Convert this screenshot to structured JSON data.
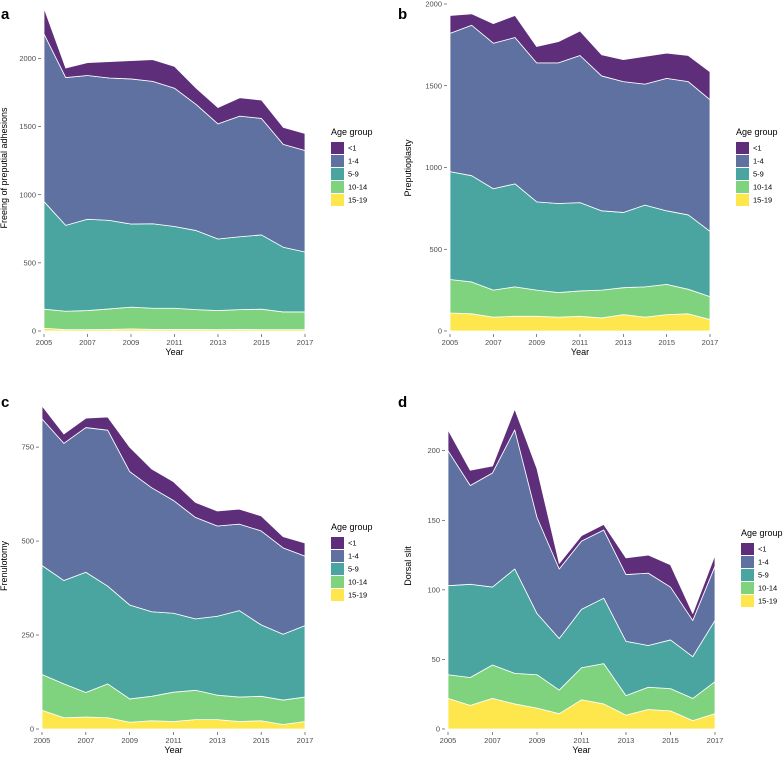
{
  "colors": {
    "<1": "#5f2e7b",
    "1-4": "#5e71a0",
    "5-9": "#4aa4a0",
    "10-14": "#7fd37e",
    "15-19": "#fde74c"
  },
  "chart_data": [
    {
      "type": "area",
      "panel": "a",
      "title": "",
      "xlabel": "Year",
      "ylabel": "Freeing of preputial adhesions",
      "ylim": [
        0,
        2400
      ],
      "yticks": [
        0,
        500,
        1000,
        1500,
        2000
      ],
      "xticks": [
        2005,
        2007,
        2009,
        2011,
        2013,
        2015,
        2017
      ],
      "legend_title": "Age group",
      "legend_labels": [
        "<1",
        "1-4",
        "5-9",
        "10-14",
        "15-19"
      ],
      "x": [
        2005,
        2006,
        2007,
        2008,
        2009,
        2010,
        2011,
        2012,
        2013,
        2014,
        2015,
        2016,
        2017
      ],
      "series": [
        {
          "name": "15-19",
          "values": [
            20,
            10,
            10,
            12,
            15,
            12,
            12,
            12,
            10,
            12,
            10,
            10,
            10
          ]
        },
        {
          "name": "10-14",
          "values": [
            140,
            135,
            140,
            150,
            160,
            155,
            155,
            145,
            140,
            145,
            150,
            130,
            130
          ]
        },
        {
          "name": "5-9",
          "values": [
            790,
            630,
            670,
            650,
            610,
            620,
            600,
            580,
            525,
            535,
            545,
            475,
            440
          ]
        },
        {
          "name": "1-4",
          "values": [
            1230,
            1085,
            1055,
            1045,
            1065,
            1045,
            1015,
            925,
            845,
            885,
            855,
            755,
            745
          ]
        },
        {
          "name": "<1",
          "values": [
            190,
            70,
            95,
            120,
            135,
            160,
            160,
            120,
            120,
            135,
            135,
            125,
            125
          ]
        }
      ]
    },
    {
      "type": "area",
      "panel": "b",
      "title": "",
      "xlabel": "Year",
      "ylabel": "Preputioplasty",
      "ylim": [
        0,
        2000
      ],
      "yticks": [
        0,
        500,
        1000,
        1500,
        2000
      ],
      "xticks": [
        2005,
        2007,
        2009,
        2011,
        2013,
        2015,
        2017
      ],
      "legend_title": "Age group",
      "legend_labels": [
        "<1",
        "1-4",
        "5-9",
        "10-14",
        "15-19"
      ],
      "x": [
        2005,
        2006,
        2007,
        2008,
        2009,
        2010,
        2011,
        2012,
        2013,
        2014,
        2015,
        2016,
        2017
      ],
      "series": [
        {
          "name": "15-19",
          "values": [
            110,
            105,
            85,
            90,
            90,
            85,
            90,
            80,
            100,
            85,
            100,
            105,
            70
          ]
        },
        {
          "name": "10-14",
          "values": [
            205,
            195,
            165,
            180,
            160,
            150,
            155,
            170,
            165,
            185,
            185,
            150,
            140
          ]
        },
        {
          "name": "5-9",
          "values": [
            660,
            650,
            620,
            630,
            540,
            545,
            540,
            485,
            460,
            500,
            450,
            455,
            400
          ]
        },
        {
          "name": "1-4",
          "values": [
            845,
            920,
            890,
            895,
            850,
            860,
            900,
            825,
            800,
            740,
            810,
            815,
            805
          ]
        },
        {
          "name": "<1",
          "values": [
            110,
            70,
            120,
            135,
            100,
            130,
            150,
            130,
            135,
            170,
            155,
            160,
            170
          ]
        }
      ]
    },
    {
      "type": "area",
      "panel": "c",
      "title": "",
      "xlabel": "Year",
      "ylabel": "Frenulotomy",
      "ylim": [
        0,
        870
      ],
      "yticks": [
        0,
        250,
        500,
        750
      ],
      "xticks": [
        2005,
        2007,
        2009,
        2011,
        2013,
        2015,
        2017
      ],
      "legend_title": "Age group",
      "legend_labels": [
        "<1",
        "1-4",
        "5-9",
        "10-14",
        "15-19"
      ],
      "x": [
        2005,
        2006,
        2007,
        2008,
        2009,
        2010,
        2011,
        2012,
        2013,
        2014,
        2015,
        2016,
        2017
      ],
      "series": [
        {
          "name": "15-19",
          "values": [
            50,
            30,
            32,
            30,
            18,
            22,
            20,
            25,
            25,
            20,
            22,
            12,
            20
          ]
        },
        {
          "name": "10-14",
          "values": [
            95,
            90,
            65,
            90,
            62,
            65,
            78,
            78,
            65,
            65,
            65,
            65,
            65
          ]
        },
        {
          "name": "5-9",
          "values": [
            290,
            275,
            320,
            260,
            250,
            225,
            210,
            190,
            210,
            230,
            190,
            175,
            190
          ]
        },
        {
          "name": "1-4",
          "values": [
            390,
            365,
            385,
            415,
            355,
            330,
            300,
            270,
            240,
            230,
            250,
            230,
            185
          ]
        },
        {
          "name": "<1",
          "values": [
            35,
            25,
            25,
            35,
            65,
            50,
            50,
            40,
            40,
            40,
            40,
            30,
            35
          ]
        }
      ]
    },
    {
      "type": "area",
      "panel": "d",
      "title": "",
      "xlabel": "Year",
      "ylabel": "Dorsal slit",
      "ylim": [
        0,
        235
      ],
      "yticks": [
        0,
        50,
        100,
        150,
        200
      ],
      "xticks": [
        2005,
        2007,
        2009,
        2011,
        2013,
        2015,
        2017
      ],
      "legend_title": "Age group",
      "legend_labels": [
        "<1",
        "1-4",
        "5-9",
        "10-14",
        "15-19"
      ],
      "x": [
        2005,
        2006,
        2007,
        2008,
        2009,
        2010,
        2011,
        2012,
        2013,
        2014,
        2015,
        2016,
        2017
      ],
      "series": [
        {
          "name": "15-19",
          "values": [
            22,
            17,
            22,
            18,
            15,
            11,
            21,
            18,
            10,
            14,
            13,
            6,
            11
          ]
        },
        {
          "name": "10-14",
          "values": [
            17,
            20,
            24,
            22,
            24,
            17,
            23,
            29,
            14,
            16,
            16,
            16,
            23
          ]
        },
        {
          "name": "5-9",
          "values": [
            64,
            67,
            56,
            75,
            44,
            37,
            42,
            47,
            39,
            30,
            35,
            30,
            44
          ]
        },
        {
          "name": "1-4",
          "values": [
            97,
            71,
            82,
            100,
            69,
            50,
            49,
            49,
            48,
            52,
            38,
            26,
            39
          ]
        },
        {
          "name": "<1",
          "values": [
            15,
            11,
            5,
            15,
            35,
            4,
            4,
            4,
            12,
            13,
            16,
            5,
            8
          ]
        }
      ]
    }
  ]
}
